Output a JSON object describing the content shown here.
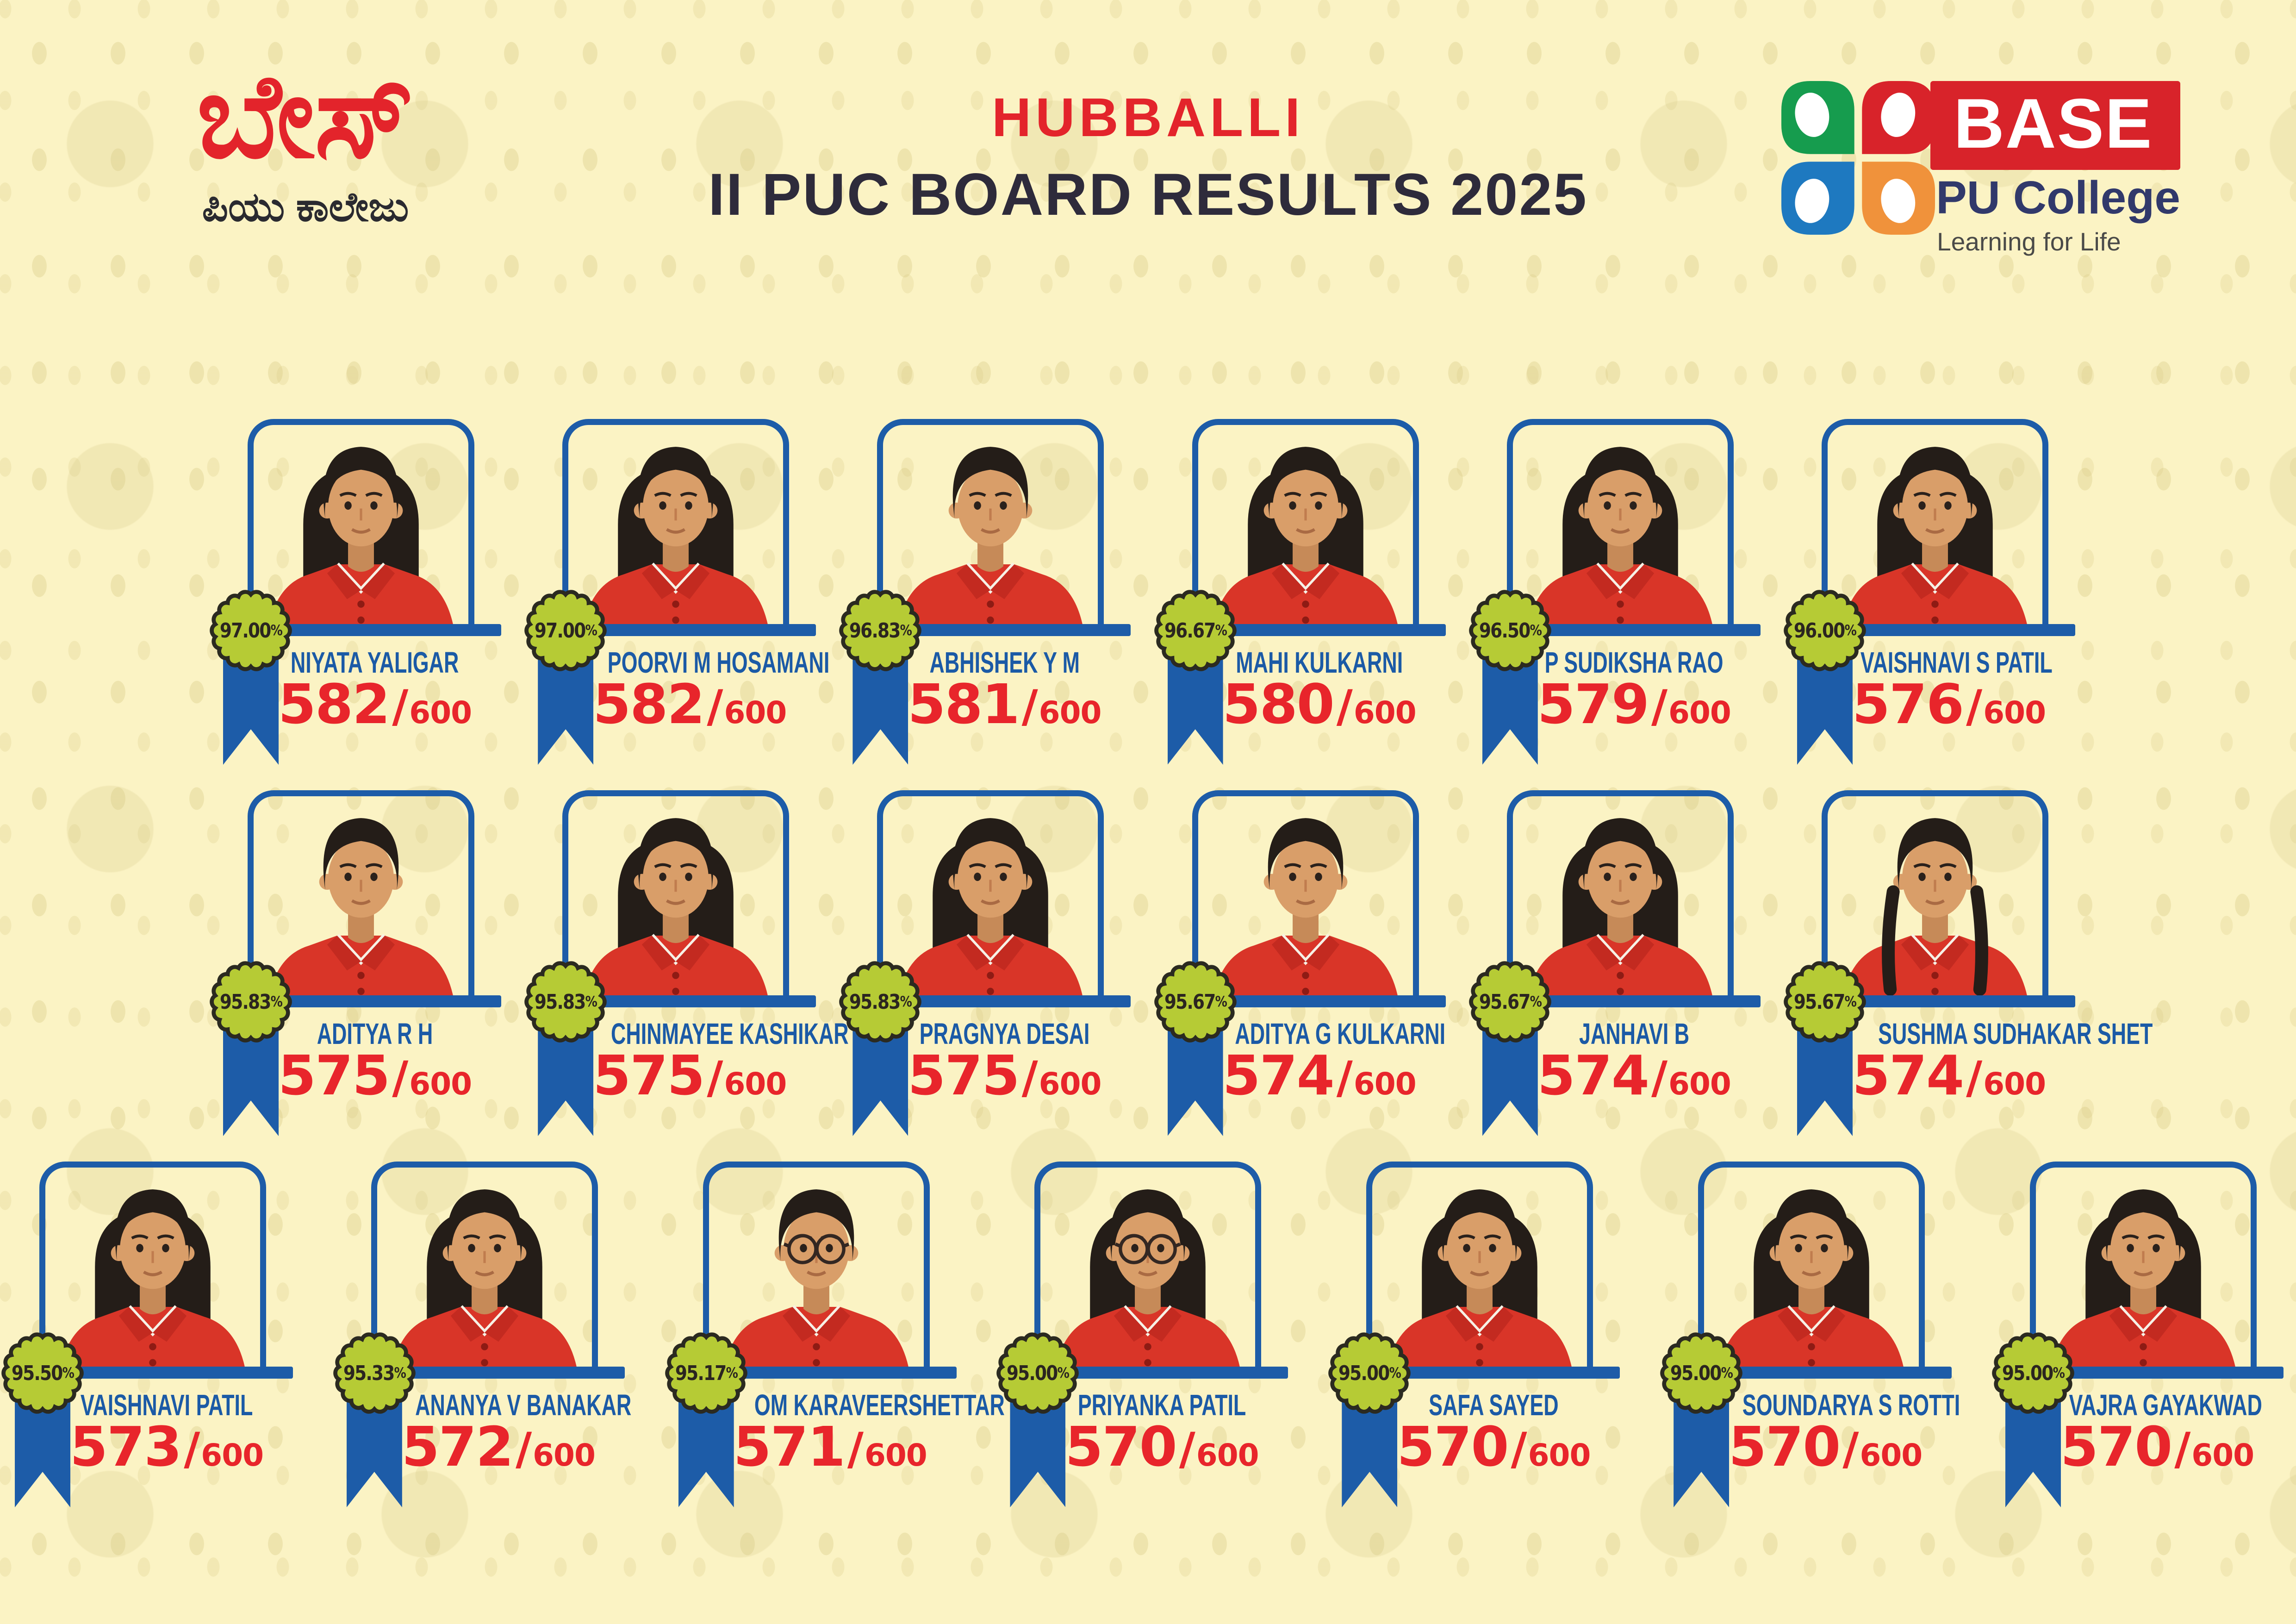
{
  "header": {
    "kannada": {
      "title": "ಬೇಸ್",
      "subtitle": "ಪಿಯು ಕಾಲೇಜು"
    },
    "city": "HUBBALLI",
    "title": "II PUC BOARD RESULTS 2025",
    "logo": {
      "text": "BASE",
      "college": "PU College",
      "tagline": "Learning for Life",
      "petal_colors": {
        "top_left": "#169C4E",
        "top_right": "#D8232A",
        "bottom_left": "#1E79C0",
        "bottom_right": "#F0923B"
      }
    }
  },
  "colors": {
    "background": "#FBF3C4",
    "frame_blue": "#1D5CA8",
    "name_blue": "#1B5AA6",
    "score_red": "#E8252B",
    "accent_red": "#E3242B",
    "title_dark": "#2E2B3B",
    "badge_green": "#B6CB35",
    "badge_outline": "#2B2A20"
  },
  "score_separator": "/",
  "rows": [
    [
      {
        "name": "NIYATA YALIGAR",
        "percent": "97.00%",
        "score": "582",
        "total": "600",
        "avatar": "girl"
      },
      {
        "name": "POORVI M HOSAMANI",
        "percent": "97.00%",
        "score": "582",
        "total": "600",
        "avatar": "girl"
      },
      {
        "name": "ABHISHEK Y M",
        "percent": "96.83%",
        "score": "581",
        "total": "600",
        "avatar": "boy"
      },
      {
        "name": "MAHI KULKARNI",
        "percent": "96.67%",
        "score": "580",
        "total": "600",
        "avatar": "girl"
      },
      {
        "name": "P SUDIKSHA RAO",
        "percent": "96.50%",
        "score": "579",
        "total": "600",
        "avatar": "girl"
      },
      {
        "name": "VAISHNAVI S PATIL",
        "percent": "96.00%",
        "score": "576",
        "total": "600",
        "avatar": "girl"
      }
    ],
    [
      {
        "name": "ADITYA R H",
        "percent": "95.83%",
        "score": "575",
        "total": "600",
        "avatar": "boy"
      },
      {
        "name": "CHINMAYEE KASHIKAR",
        "percent": "95.83%",
        "score": "575",
        "total": "600",
        "avatar": "girl"
      },
      {
        "name": "PRAGNYA DESAI",
        "percent": "95.83%",
        "score": "575",
        "total": "600",
        "avatar": "girl"
      },
      {
        "name": "ADITYA G KULKARNI",
        "percent": "95.67%",
        "score": "574",
        "total": "600",
        "avatar": "boy"
      },
      {
        "name": "JANHAVI B",
        "percent": "95.67%",
        "score": "574",
        "total": "600",
        "avatar": "girl"
      },
      {
        "name": "SUSHMA SUDHAKAR SHET",
        "percent": "95.67%",
        "score": "574",
        "total": "600",
        "avatar": "girl-braids"
      }
    ],
    [
      {
        "name": "VAISHNAVI PATIL",
        "percent": "95.50%",
        "score": "573",
        "total": "600",
        "avatar": "girl"
      },
      {
        "name": "ANANYA V BANAKAR",
        "percent": "95.33%",
        "score": "572",
        "total": "600",
        "avatar": "girl"
      },
      {
        "name": "OM KARAVEERSHETTAR",
        "percent": "95.17%",
        "score": "571",
        "total": "600",
        "avatar": "boy-glasses"
      },
      {
        "name": "PRIYANKA PATIL",
        "percent": "95.00%",
        "score": "570",
        "total": "600",
        "avatar": "girl-glasses"
      },
      {
        "name": "SAFA SAYED",
        "percent": "95.00%",
        "score": "570",
        "total": "600",
        "avatar": "girl"
      },
      {
        "name": "SOUNDARYA S ROTTI",
        "percent": "95.00%",
        "score": "570",
        "total": "600",
        "avatar": "girl"
      },
      {
        "name": "VAJRA GAYAKWAD",
        "percent": "95.00%",
        "score": "570",
        "total": "600",
        "avatar": "girl"
      }
    ]
  ]
}
